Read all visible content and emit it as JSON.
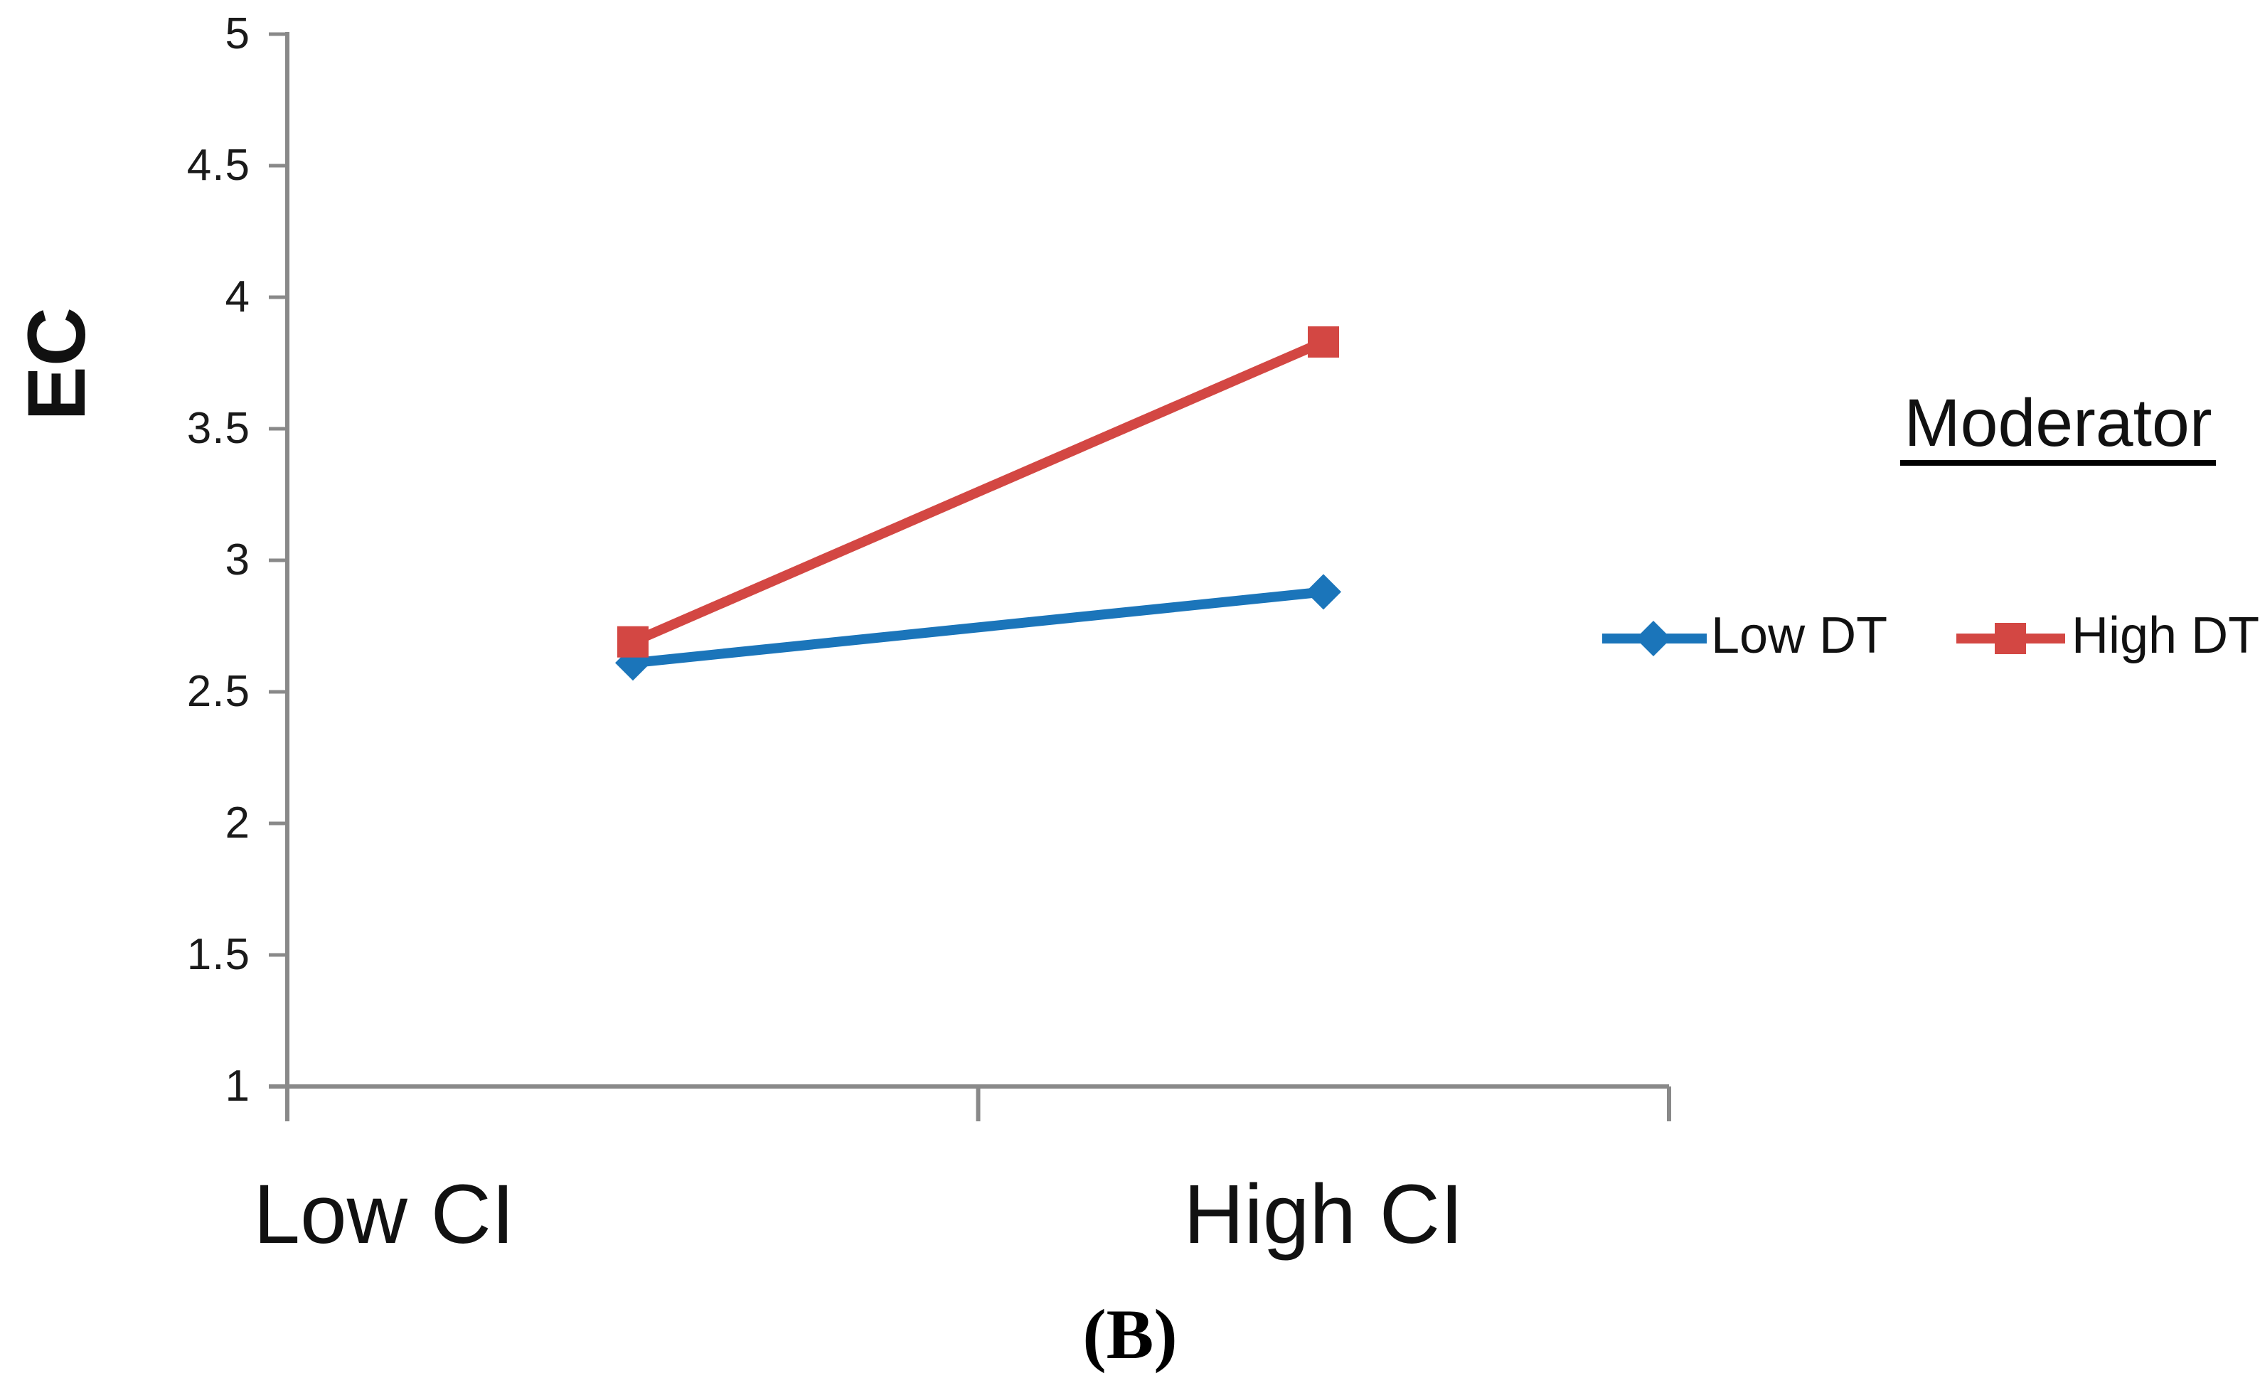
{
  "chart_data": {
    "type": "line",
    "categories": [
      "Low CI",
      "High CI"
    ],
    "series": [
      {
        "name": "Low DT",
        "values": [
          2.61,
          2.88
        ],
        "color": "#1B75BA",
        "marker": "diamond"
      },
      {
        "name": "High DT",
        "values": [
          2.69,
          3.83
        ],
        "color": "#D34743",
        "marker": "square"
      }
    ],
    "ylabel": "EC",
    "xlabel": "",
    "ylim": [
      1,
      5
    ],
    "ytick_step": 0.5,
    "yticks": [
      {
        "label": "5",
        "value": 5.0
      },
      {
        "label": "4.5",
        "value": 4.5
      },
      {
        "label": "4",
        "value": 4.0
      },
      {
        "label": "3.5",
        "value": 3.5
      },
      {
        "label": "3",
        "value": 3.0
      },
      {
        "label": "2.5",
        "value": 2.5
      },
      {
        "label": "2",
        "value": 2.0
      },
      {
        "label": "1.5",
        "value": 1.5
      },
      {
        "label": "1",
        "value": 1.0
      }
    ],
    "grid": false,
    "legend_title": "Moderator",
    "legend_position": "right",
    "caption": "(B)",
    "axis_color": "#898989"
  }
}
